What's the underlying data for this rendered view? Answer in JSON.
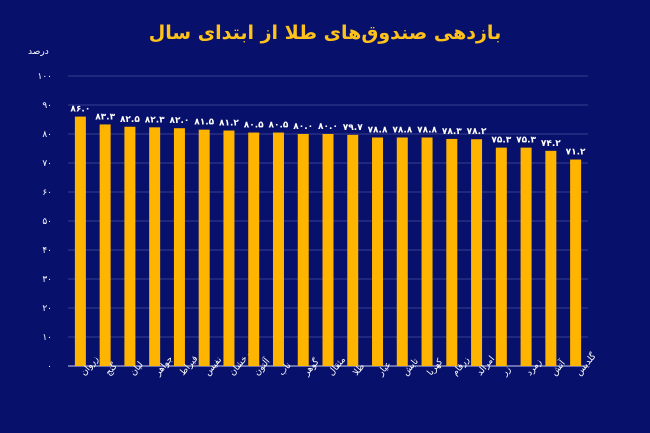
{
  "chart_data": {
    "type": "bar",
    "title": "بازدهی صندوق‌های طلا از ابتدای سال",
    "ylabel": "درصد",
    "xlabel": "",
    "ylim": [
      0,
      100
    ],
    "yticks": [
      "۰",
      "۱۰",
      "۲۰",
      "۳۰",
      "۴۰",
      "۵۰",
      "۶۰",
      "۷۰",
      "۸۰",
      "۹۰",
      "۱۰۰"
    ],
    "grid": true,
    "categories": [
      "زروان",
      "گنج",
      "لیان",
      "جواهر",
      "قیراط",
      "نفیس",
      "درخشان",
      "آلتون",
      "ناب",
      "گوهر",
      "مثقال",
      "طلا",
      "عیار",
      "تابش",
      "کهربا",
      "زرفام",
      "امرالد",
      "زر",
      "زمرد",
      "آتش",
      "گلدیس"
    ],
    "values": [
      86.0,
      83.3,
      82.5,
      82.3,
      82.0,
      81.5,
      81.2,
      80.5,
      80.5,
      80.0,
      80.0,
      79.7,
      78.8,
      78.8,
      78.8,
      78.3,
      78.2,
      75.3,
      75.3,
      74.2,
      71.2
    ],
    "value_labels": [
      "۸۶.۰",
      "۸۳.۳",
      "۸۲.۵",
      "۸۲.۳",
      "۸۲.۰",
      "۸۱.۵",
      "۸۱.۲",
      "۸۰.۵",
      "۸۰.۵",
      "۸۰.۰",
      "۸۰.۰",
      "۷۹.۷",
      "۷۸.۸",
      "۷۸.۸",
      "۷۸.۸",
      "۷۸.۳",
      "۷۸.۲",
      "۷۵.۳",
      "۷۵.۳",
      "۷۴.۲",
      "۷۱.۲"
    ],
    "bar_color": "#ffb400",
    "title_color": "#ffc21a"
  }
}
